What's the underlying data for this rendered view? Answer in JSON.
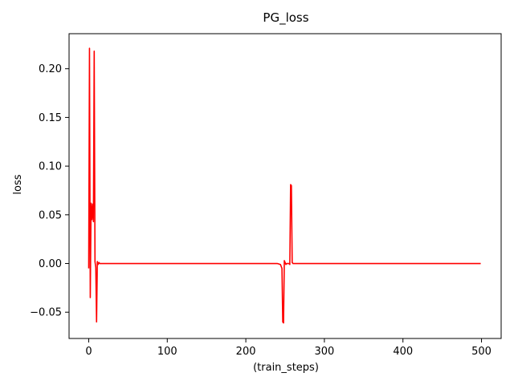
{
  "chart_data": {
    "type": "line",
    "title": "PG_loss",
    "xlabel": "(train_steps)",
    "ylabel": "loss",
    "xlim": [
      -25,
      525
    ],
    "ylim": [
      -0.077,
      0.236
    ],
    "x_ticks": [
      0,
      100,
      200,
      300,
      400,
      500
    ],
    "y_ticks": [
      -0.05,
      0.0,
      0.05,
      0.1,
      0.15,
      0.2
    ],
    "x_tick_labels": [
      "0",
      "100",
      "200",
      "300",
      "400",
      "500"
    ],
    "y_tick_labels": [
      "−0.05",
      "0.00",
      "0.05",
      "0.10",
      "0.15",
      "0.20"
    ],
    "grid": false,
    "legend": "none",
    "series": [
      {
        "color": "#ff0000",
        "points": [
          [
            0,
            -0.005
          ],
          [
            1,
            0.221
          ],
          [
            2,
            -0.035
          ],
          [
            3,
            0.062
          ],
          [
            4,
            0.045
          ],
          [
            5,
            0.061
          ],
          [
            6,
            0.043
          ],
          [
            7,
            0.218
          ],
          [
            8,
            0.002
          ],
          [
            9,
            -0.004
          ],
          [
            10,
            -0.06
          ],
          [
            11,
            0.002
          ],
          [
            12,
            -0.001
          ],
          [
            13,
            0.001
          ],
          [
            14,
            0.0
          ],
          [
            20,
            0.0
          ],
          [
            50,
            0.0
          ],
          [
            100,
            0.0
          ],
          [
            150,
            0.0
          ],
          [
            200,
            0.0
          ],
          [
            240,
            0.0
          ],
          [
            244,
            -0.001
          ],
          [
            246,
            -0.005
          ],
          [
            247,
            -0.06
          ],
          [
            248,
            -0.061
          ],
          [
            249,
            0.003
          ],
          [
            250,
            0.001
          ],
          [
            251,
            -0.001
          ],
          [
            252,
            0.0
          ],
          [
            255,
            0.0
          ],
          [
            256,
            -0.001
          ],
          [
            257,
            0.081
          ],
          [
            258,
            0.08
          ],
          [
            259,
            0.001
          ],
          [
            260,
            0.0
          ],
          [
            300,
            0.0
          ],
          [
            400,
            0.0
          ],
          [
            499,
            0.0
          ]
        ]
      }
    ]
  }
}
